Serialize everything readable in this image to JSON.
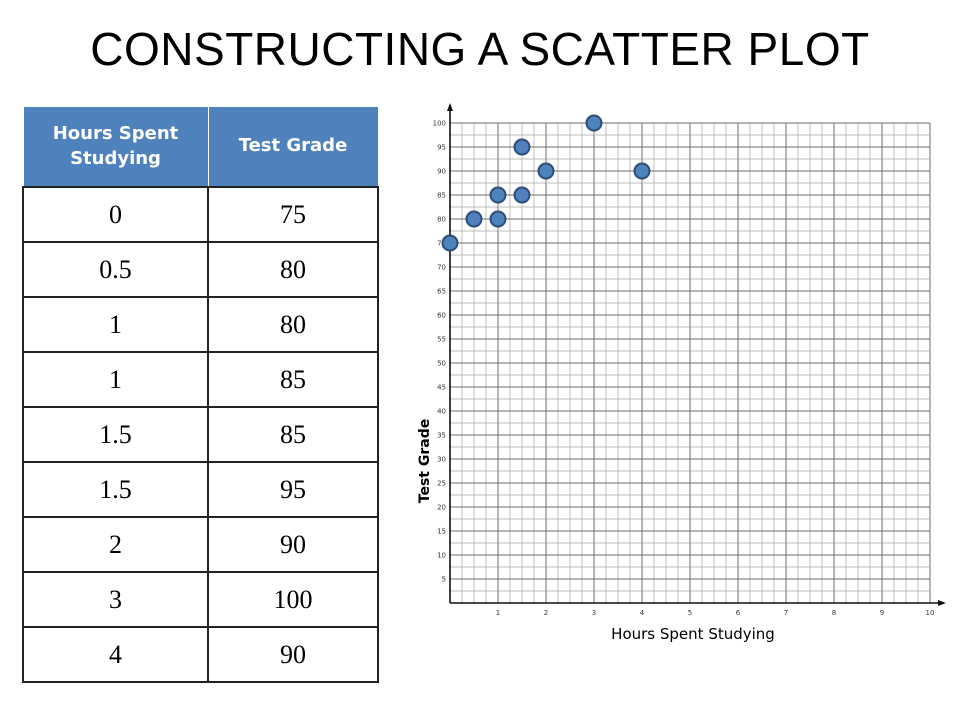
{
  "slide": {
    "title": "CONSTRUCTING A SCATTER PLOT"
  },
  "table": {
    "headers": [
      "Hours Spent Studying",
      "Test Grade"
    ],
    "rows": [
      [
        "0",
        "75"
      ],
      [
        "0.5",
        "80"
      ],
      [
        "1",
        "80"
      ],
      [
        "1",
        "85"
      ],
      [
        "1.5",
        "85"
      ],
      [
        "1.5",
        "95"
      ],
      [
        "2",
        "90"
      ],
      [
        "3",
        "100"
      ],
      [
        "4",
        "90"
      ]
    ]
  },
  "chart_data": {
    "type": "scatter",
    "title": "",
    "xlabel": "Hours Spent Studying",
    "ylabel": "Test Grade",
    "xlim": [
      0,
      10
    ],
    "ylim": [
      0,
      100
    ],
    "x_ticks": [
      1,
      2,
      3,
      4,
      5,
      6,
      7,
      8,
      9,
      10
    ],
    "y_ticks": [
      5,
      10,
      15,
      20,
      25,
      30,
      35,
      40,
      45,
      50,
      55,
      60,
      65,
      70,
      75,
      80,
      85,
      90,
      95,
      100
    ],
    "grid": true,
    "points": [
      {
        "x": 0,
        "y": 75
      },
      {
        "x": 0.5,
        "y": 80
      },
      {
        "x": 1,
        "y": 80
      },
      {
        "x": 1,
        "y": 85
      },
      {
        "x": 1.5,
        "y": 85
      },
      {
        "x": 1.5,
        "y": 95
      },
      {
        "x": 2,
        "y": 90
      },
      {
        "x": 3,
        "y": 100
      },
      {
        "x": 4,
        "y": 90
      }
    ],
    "marker_color": "#4f81bd",
    "marker_edge_color": "#2e4d75"
  }
}
